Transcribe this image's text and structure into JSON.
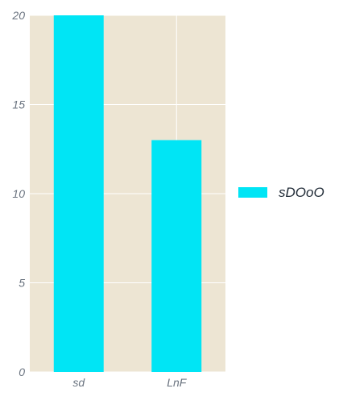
{
  "chart_data": {
    "type": "bar",
    "categories": [
      "sd",
      "LnF"
    ],
    "series": [
      {
        "name": "sDOoO",
        "values": [
          20,
          13
        ]
      }
    ],
    "ylim": [
      0,
      20
    ],
    "yticks": [
      0,
      5,
      10,
      15,
      20
    ],
    "grid": true,
    "legend_position": "right",
    "colors": {
      "bar": "#00e5f5",
      "plot_background": "#ede5d3",
      "grid": "#ffffff"
    }
  }
}
